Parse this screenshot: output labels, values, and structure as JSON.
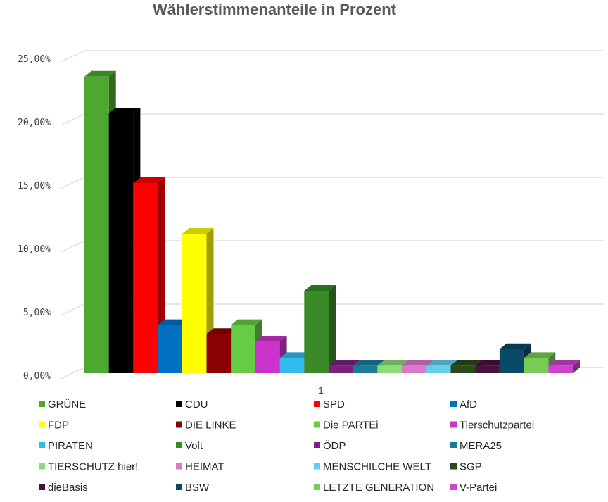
{
  "chart_data": {
    "type": "bar",
    "title": "Wählerstimmenanteile in Prozent",
    "xlabel": "",
    "ylabel": "",
    "categories": [
      "1"
    ],
    "ylim": [
      0,
      25
    ],
    "yticks": [
      "0,00%",
      "5,00%",
      "10,00%",
      "15,00%",
      "20,00%",
      "25,00%"
    ],
    "grid": true,
    "legend_position": "bottom",
    "series": [
      {
        "name": "GRÜNE",
        "values": [
          23.4
        ],
        "color": "#4ea72e"
      },
      {
        "name": "CDU",
        "values": [
          20.5
        ],
        "color": "#000000"
      },
      {
        "name": "SPD",
        "values": [
          15.0
        ],
        "color": "#ff0000"
      },
      {
        "name": "AfD",
        "values": [
          3.8
        ],
        "color": "#0070c0"
      },
      {
        "name": "FDP",
        "values": [
          11.0
        ],
        "color": "#ffff00"
      },
      {
        "name": "DIE LINKE",
        "values": [
          3.1
        ],
        "color": "#8b0000"
      },
      {
        "name": "Die PARTEi",
        "values": [
          3.8
        ],
        "color": "#66cc44"
      },
      {
        "name": "Tierschutzpartei",
        "values": [
          2.5
        ],
        "color": "#cc33cc"
      },
      {
        "name": "PIRATEN",
        "values": [
          1.2
        ],
        "color": "#33bbee"
      },
      {
        "name": "Volt",
        "values": [
          6.5
        ],
        "color": "#3a8a2a"
      },
      {
        "name": "ÖDP",
        "values": [
          0.6
        ],
        "color": "#7a2080"
      },
      {
        "name": "MERA25",
        "values": [
          0.6
        ],
        "color": "#1a7a9a"
      },
      {
        "name": "TIERSCHUTZ hier!",
        "values": [
          0.6
        ],
        "color": "#88dd77"
      },
      {
        "name": "HEIMAT",
        "values": [
          0.6
        ],
        "color": "#dd77cc"
      },
      {
        "name": "MENSCHILCHE WELT",
        "values": [
          0.6
        ],
        "color": "#66ccee"
      },
      {
        "name": "SGP",
        "values": [
          0.6
        ],
        "color": "#2a4a1a"
      },
      {
        "name": "dieBasis",
        "values": [
          0.6
        ],
        "color": "#4a1040"
      },
      {
        "name": "BSW",
        "values": [
          1.9
        ],
        "color": "#0a4a66"
      },
      {
        "name": "LETZTE GENERATION",
        "values": [
          1.2
        ],
        "color": "#77cc55"
      },
      {
        "name": "V-Partei",
        "values": [
          0.6
        ],
        "color": "#cc44cc"
      }
    ]
  }
}
